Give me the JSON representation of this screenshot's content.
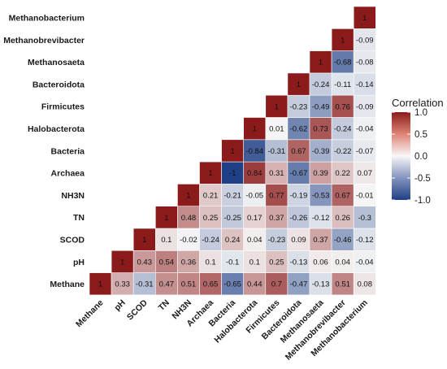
{
  "chart_data": {
    "type": "heatmap",
    "variables": [
      "Methane",
      "pH",
      "SCOD",
      "TN",
      "NH3N",
      "Archaea",
      "Bacteria",
      "Halobacterota",
      "Firmicutes",
      "Bacteroidota",
      "Methanosaeta",
      "Methanobrevibacter",
      "Methanobacterium"
    ],
    "cells": [
      {
        "row": "Methane",
        "col": "Methane",
        "value": 1,
        "label": "1"
      },
      {
        "row": "Methane",
        "col": "pH",
        "value": 0.33,
        "label": "0.33"
      },
      {
        "row": "Methane",
        "col": "SCOD",
        "value": -0.31,
        "label": "-0.31"
      },
      {
        "row": "Methane",
        "col": "TN",
        "value": 0.47,
        "label": "0.47"
      },
      {
        "row": "Methane",
        "col": "NH3N",
        "value": 0.51,
        "label": "0.51"
      },
      {
        "row": "Methane",
        "col": "Archaea",
        "value": 0.65,
        "label": "0.65"
      },
      {
        "row": "Methane",
        "col": "Bacteria",
        "value": -0.65,
        "label": "-0.65"
      },
      {
        "row": "Methane",
        "col": "Halobacterota",
        "value": 0.44,
        "label": "0.44"
      },
      {
        "row": "Methane",
        "col": "Firmicutes",
        "value": 0.7,
        "label": "0.7"
      },
      {
        "row": "Methane",
        "col": "Bacteroidota",
        "value": -0.47,
        "label": "-0.47"
      },
      {
        "row": "Methane",
        "col": "Methanosaeta",
        "value": -0.13,
        "label": "-0.13"
      },
      {
        "row": "Methane",
        "col": "Methanobrevibacter",
        "value": 0.51,
        "label": "0.51"
      },
      {
        "row": "Methane",
        "col": "Methanobacterium",
        "value": 0.08,
        "label": "0.08"
      },
      {
        "row": "pH",
        "col": "pH",
        "value": 1,
        "label": "1"
      },
      {
        "row": "pH",
        "col": "SCOD",
        "value": 0.43,
        "label": "0.43"
      },
      {
        "row": "pH",
        "col": "TN",
        "value": 0.54,
        "label": "0.54"
      },
      {
        "row": "pH",
        "col": "NH3N",
        "value": 0.36,
        "label": "0.36"
      },
      {
        "row": "pH",
        "col": "Archaea",
        "value": 0.1,
        "label": "0.1"
      },
      {
        "row": "pH",
        "col": "Bacteria",
        "value": -0.1,
        "label": "-0.1"
      },
      {
        "row": "pH",
        "col": "Halobacterota",
        "value": 0.1,
        "label": "0.1"
      },
      {
        "row": "pH",
        "col": "Firmicutes",
        "value": 0.25,
        "label": "0.25"
      },
      {
        "row": "pH",
        "col": "Bacteroidota",
        "value": -0.13,
        "label": "-0.13"
      },
      {
        "row": "pH",
        "col": "Methanosaeta",
        "value": 0.06,
        "label": "0.06"
      },
      {
        "row": "pH",
        "col": "Methanobrevibacter",
        "value": 0.04,
        "label": "0.04"
      },
      {
        "row": "pH",
        "col": "Methanobacterium",
        "value": -0.04,
        "label": "-0.04"
      },
      {
        "row": "SCOD",
        "col": "SCOD",
        "value": 1,
        "label": "1"
      },
      {
        "row": "SCOD",
        "col": "TN",
        "value": 0.1,
        "label": "0.1"
      },
      {
        "row": "SCOD",
        "col": "NH3N",
        "value": -0.02,
        "label": "-0.02"
      },
      {
        "row": "SCOD",
        "col": "Archaea",
        "value": -0.24,
        "label": "-0.24"
      },
      {
        "row": "SCOD",
        "col": "Bacteria",
        "value": 0.24,
        "label": "0.24"
      },
      {
        "row": "SCOD",
        "col": "Halobacterota",
        "value": 0.04,
        "label": "0.04"
      },
      {
        "row": "SCOD",
        "col": "Firmicutes",
        "value": -0.23,
        "label": "-0.23"
      },
      {
        "row": "SCOD",
        "col": "Bacteroidota",
        "value": 0.09,
        "label": "0.09"
      },
      {
        "row": "SCOD",
        "col": "Methanosaeta",
        "value": 0.37,
        "label": "0.37"
      },
      {
        "row": "SCOD",
        "col": "Methanobrevibacter",
        "value": -0.46,
        "label": "-0.46"
      },
      {
        "row": "SCOD",
        "col": "Methanobacterium",
        "value": -0.12,
        "label": "-0.12"
      },
      {
        "row": "TN",
        "col": "TN",
        "value": 1,
        "label": "1"
      },
      {
        "row": "TN",
        "col": "NH3N",
        "value": 0.48,
        "label": "0.48"
      },
      {
        "row": "TN",
        "col": "Archaea",
        "value": 0.25,
        "label": "0.25"
      },
      {
        "row": "TN",
        "col": "Bacteria",
        "value": -0.25,
        "label": "-0.25"
      },
      {
        "row": "TN",
        "col": "Halobacterota",
        "value": 0.17,
        "label": "0.17"
      },
      {
        "row": "TN",
        "col": "Firmicutes",
        "value": 0.37,
        "label": "0.37"
      },
      {
        "row": "TN",
        "col": "Bacteroidota",
        "value": -0.26,
        "label": "-0.26"
      },
      {
        "row": "TN",
        "col": "Methanosaeta",
        "value": -0.12,
        "label": "-0.12"
      },
      {
        "row": "TN",
        "col": "Methanobrevibacter",
        "value": 0.26,
        "label": "0.26"
      },
      {
        "row": "TN",
        "col": "Methanobacterium",
        "value": -0.3,
        "label": "-0.3"
      },
      {
        "row": "NH3N",
        "col": "NH3N",
        "value": 1,
        "label": "1"
      },
      {
        "row": "NH3N",
        "col": "Archaea",
        "value": 0.21,
        "label": "0.21"
      },
      {
        "row": "NH3N",
        "col": "Bacteria",
        "value": -0.21,
        "label": "-0.21"
      },
      {
        "row": "NH3N",
        "col": "Halobacterota",
        "value": -0.05,
        "label": "-0.05"
      },
      {
        "row": "NH3N",
        "col": "Firmicutes",
        "value": 0.77,
        "label": "0.77"
      },
      {
        "row": "NH3N",
        "col": "Bacteroidota",
        "value": -0.19,
        "label": "-0.19"
      },
      {
        "row": "NH3N",
        "col": "Methanosaeta",
        "value": -0.53,
        "label": "-0.53"
      },
      {
        "row": "NH3N",
        "col": "Methanobrevibacter",
        "value": 0.67,
        "label": "0.67"
      },
      {
        "row": "NH3N",
        "col": "Methanobacterium",
        "value": -0.01,
        "label": "-0.01"
      },
      {
        "row": "Archaea",
        "col": "Archaea",
        "value": 1,
        "label": "1"
      },
      {
        "row": "Archaea",
        "col": "Bacteria",
        "value": -1,
        "label": "-1"
      },
      {
        "row": "Archaea",
        "col": "Halobacterota",
        "value": 0.84,
        "label": "0.84"
      },
      {
        "row": "Archaea",
        "col": "Firmicutes",
        "value": 0.31,
        "label": "0.31"
      },
      {
        "row": "Archaea",
        "col": "Bacteroidota",
        "value": -0.67,
        "label": "-0.67"
      },
      {
        "row": "Archaea",
        "col": "Methanosaeta",
        "value": 0.39,
        "label": "0.39"
      },
      {
        "row": "Archaea",
        "col": "Methanobrevibacter",
        "value": 0.22,
        "label": "0.22"
      },
      {
        "row": "Archaea",
        "col": "Methanobacterium",
        "value": 0.07,
        "label": "0.07"
      },
      {
        "row": "Bacteria",
        "col": "Bacteria",
        "value": 1,
        "label": "1"
      },
      {
        "row": "Bacteria",
        "col": "Halobacterota",
        "value": -0.84,
        "label": "-0.84"
      },
      {
        "row": "Bacteria",
        "col": "Firmicutes",
        "value": -0.31,
        "label": "-0.31"
      },
      {
        "row": "Bacteria",
        "col": "Bacteroidota",
        "value": 0.67,
        "label": "0.67"
      },
      {
        "row": "Bacteria",
        "col": "Methanosaeta",
        "value": -0.39,
        "label": "-0.39"
      },
      {
        "row": "Bacteria",
        "col": "Methanobrevibacter",
        "value": -0.22,
        "label": "-0.22"
      },
      {
        "row": "Bacteria",
        "col": "Methanobacterium",
        "value": -0.07,
        "label": "-0.07"
      },
      {
        "row": "Halobacterota",
        "col": "Halobacterota",
        "value": 1,
        "label": "1"
      },
      {
        "row": "Halobacterota",
        "col": "Firmicutes",
        "value": 0.01,
        "label": "0.01"
      },
      {
        "row": "Halobacterota",
        "col": "Bacteroidota",
        "value": -0.62,
        "label": "-0.62"
      },
      {
        "row": "Halobacterota",
        "col": "Methanosaeta",
        "value": 0.73,
        "label": "0.73"
      },
      {
        "row": "Halobacterota",
        "col": "Methanobrevibacter",
        "value": -0.24,
        "label": "-0.24"
      },
      {
        "row": "Halobacterota",
        "col": "Methanobacterium",
        "value": -0.04,
        "label": "-0.04"
      },
      {
        "row": "Firmicutes",
        "col": "Firmicutes",
        "value": 1,
        "label": "1"
      },
      {
        "row": "Firmicutes",
        "col": "Bacteroidota",
        "value": -0.23,
        "label": "-0.23"
      },
      {
        "row": "Firmicutes",
        "col": "Methanosaeta",
        "value": -0.49,
        "label": "-0.49"
      },
      {
        "row": "Firmicutes",
        "col": "Methanobrevibacter",
        "value": 0.76,
        "label": "0.76"
      },
      {
        "row": "Firmicutes",
        "col": "Methanobacterium",
        "value": -0.09,
        "label": "-0.09"
      },
      {
        "row": "Bacteroidota",
        "col": "Bacteroidota",
        "value": 1,
        "label": "1"
      },
      {
        "row": "Bacteroidota",
        "col": "Methanosaeta",
        "value": -0.24,
        "label": "-0.24"
      },
      {
        "row": "Bacteroidota",
        "col": "Methanobrevibacter",
        "value": -0.11,
        "label": "-0.11"
      },
      {
        "row": "Bacteroidota",
        "col": "Methanobacterium",
        "value": -0.14,
        "label": "-0.14"
      },
      {
        "row": "Methanosaeta",
        "col": "Methanosaeta",
        "value": 1,
        "label": "1"
      },
      {
        "row": "Methanosaeta",
        "col": "Methanobrevibacter",
        "value": -0.68,
        "label": "-0.68"
      },
      {
        "row": "Methanosaeta",
        "col": "Methanobacterium",
        "value": -0.08,
        "label": "-0.08"
      },
      {
        "row": "Methanobrevibacter",
        "col": "Methanobrevibacter",
        "value": 1,
        "label": "1"
      },
      {
        "row": "Methanobrevibacter",
        "col": "Methanobacterium",
        "value": -0.09,
        "label": "-0.09"
      },
      {
        "row": "Methanobacterium",
        "col": "Methanobacterium",
        "value": 1,
        "label": "1"
      }
    ],
    "legend": {
      "title": "Correlation",
      "ticks": [
        "1.0",
        "0.5",
        "0.0",
        "-0.5",
        "-1.0"
      ],
      "tick_values": [
        1,
        0.5,
        0,
        -0.5,
        -1
      ],
      "placement": "right"
    },
    "value_range": [
      -1,
      1
    ],
    "colors": {
      "high": "#8b1a1a",
      "mid": "#f7f7f7",
      "low": "#1f3f86"
    },
    "grid": false
  }
}
